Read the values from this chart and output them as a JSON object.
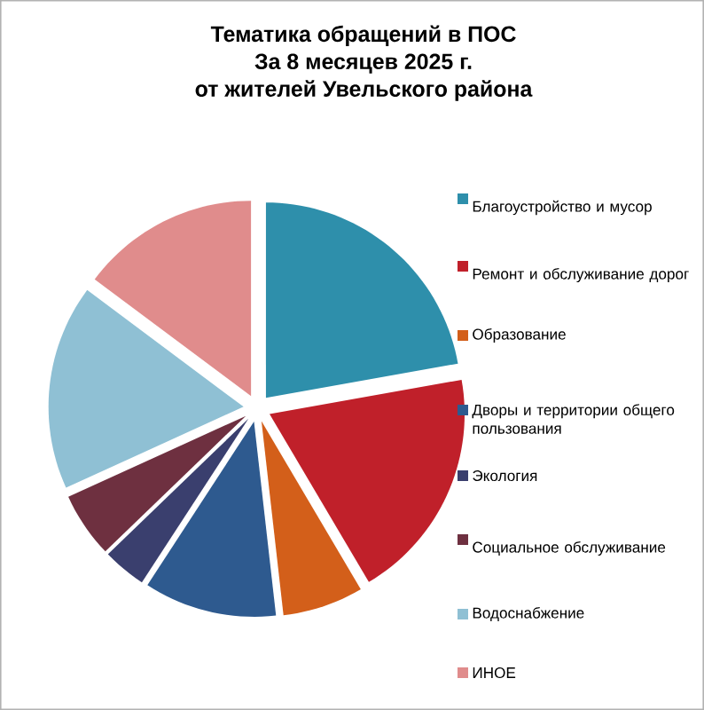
{
  "chart_data": {
    "type": "pie",
    "title": "Тематика обращений в ПОС\nЗа 8 месяцев 2025 г.\nот жителей Увельского района",
    "categories": [
      "Благоустройство и мусор",
      "Ремонт и обслуживание дорог",
      "Образование",
      "Дворы и территории общего пользования",
      "Экология",
      "Социальное обслуживание",
      "Водоснабжение",
      "ИНОЕ"
    ],
    "values": [
      22.2,
      19.3,
      6.7,
      11,
      3.6,
      5.4,
      17,
      14.8
    ],
    "colors": [
      "#2e8fab",
      "#c0202a",
      "#d35f1a",
      "#2e5a8f",
      "#3a3f6e",
      "#6e3040",
      "#8fc0d4",
      "#e08c8c"
    ],
    "legend": "right"
  }
}
